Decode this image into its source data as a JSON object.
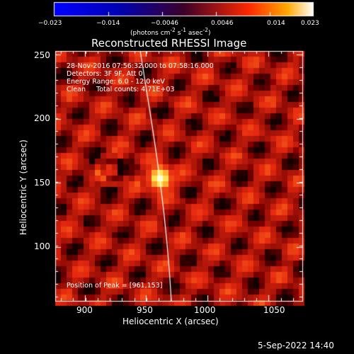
{
  "colorbar": {
    "tick_labels": [
      "−0.023",
      "−0.014",
      "−0.0046",
      "0.0046",
      "0.014",
      "0.023"
    ],
    "unit_label_html": "(photons cm<sup>-2</sup> s<sup>-1</sup> asec<sup>-2</sup>)"
  },
  "plot": {
    "title": "Reconstructed RHESSI Image",
    "info_lines": [
      "28-Nov-2016 07:56:32.000 to 07:58:16.000",
      "Detectors: 3F 9F, Att 0",
      "Energy Range: 6.0 - 12.0 keV",
      "Clean     Total counts: 4.71E+03"
    ],
    "peak_label": "Position of Peak = [961,153]",
    "x_ticks": [
      "900",
      "950",
      "1000",
      "1050"
    ],
    "y_ticks": [
      "250",
      "200",
      "150",
      "100"
    ],
    "xlabel": "Heliocentric X (arcsec)",
    "ylabel": "Heliocentric Y (arcsec)"
  },
  "footer": {
    "date_label": "5-Sep-2022 14:40"
  },
  "colors": {
    "background": "#000000",
    "axis": "#ffffff",
    "peak": "#ffff80"
  }
}
